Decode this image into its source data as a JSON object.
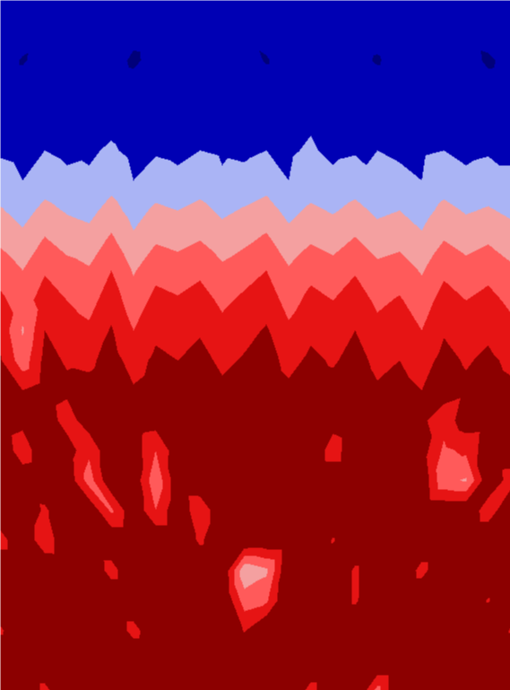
{
  "chart_data": {
    "type": "heatmap",
    "tick_labels": false,
    "color_thresholds": [
      1,
      2,
      3,
      4,
      5,
      6
    ],
    "colors": [
      "#00007a",
      "#0000b4",
      "#aab4f5",
      "#f4a0a0",
      "#ff5a5a",
      "#e61414",
      "#8c0000"
    ],
    "cells": [
      [
        1.5,
        1.4,
        1.6,
        1.3,
        1.5,
        1.2,
        1.6,
        1.4,
        1.5,
        1.3,
        1.6,
        1.5,
        1.4,
        1.2,
        1.5,
        1.6,
        1.3,
        1.5,
        1.4,
        1.6,
        1.3,
        1.5,
        1.4,
        1.5
      ],
      [
        1.4,
        1.6,
        1.3,
        1.5,
        1.2,
        1.6,
        1.4,
        1.5,
        1.3,
        1.6,
        1.4,
        1.2,
        1.5,
        1.4,
        1.6,
        1.3,
        1.5,
        1.4,
        1.6,
        1.2,
        1.5,
        1.4,
        1.6,
        1.3
      ],
      [
        1.5,
        0.9,
        1.4,
        1.6,
        1.3,
        1.5,
        0.8,
        1.4,
        1.6,
        1.5,
        1.3,
        1.5,
        0.9,
        1.6,
        1.4,
        1.5,
        1.3,
        0.9,
        1.5,
        1.4,
        1.6,
        1.5,
        0.8,
        1.4
      ],
      [
        1.6,
        1.5,
        1.7,
        1.4,
        1.6,
        1.7,
        1.5,
        1.6,
        1.4,
        1.7,
        1.6,
        1.5,
        1.7,
        1.6,
        1.4,
        1.6,
        1.7,
        1.5,
        1.6,
        1.4,
        1.7,
        1.6,
        1.5,
        1.6
      ],
      [
        1.7,
        1.8,
        1.6,
        1.9,
        1.7,
        1.8,
        1.6,
        1.8,
        1.9,
        1.7,
        1.8,
        1.6,
        1.8,
        1.7,
        1.9,
        1.8,
        1.6,
        1.8,
        1.7,
        1.9,
        1.8,
        1.7,
        1.8,
        1.6
      ],
      [
        1.9,
        1.8,
        2.0,
        1.8,
        1.9,
        2.1,
        1.8,
        1.9,
        1.8,
        2.0,
        1.9,
        1.8,
        2.0,
        1.9,
        2.1,
        1.8,
        1.9,
        2.0,
        1.8,
        1.9,
        2.0,
        1.8,
        1.9,
        1.9
      ],
      [
        2.3,
        2.0,
        2.5,
        2.2,
        2.1,
        2.6,
        2.0,
        2.4,
        2.2,
        2.5,
        2.1,
        2.3,
        2.6,
        2.0,
        2.4,
        2.2,
        2.5,
        2.1,
        2.3,
        2.0,
        2.5,
        2.2,
        2.4,
        2.1
      ],
      [
        3.1,
        2.6,
        3.3,
        2.9,
        2.7,
        3.4,
        2.6,
        3.2,
        3.0,
        3.3,
        2.8,
        3.1,
        3.4,
        2.7,
        3.2,
        2.9,
        3.3,
        2.8,
        3.0,
        2.6,
        3.3,
        2.9,
        3.1,
        2.8
      ],
      [
        3.8,
        3.3,
        4.1,
        3.6,
        3.4,
        4.2,
        3.2,
        3.9,
        3.7,
        4.0,
        3.5,
        3.8,
        4.2,
        3.4,
        3.9,
        3.6,
        4.1,
        3.5,
        3.7,
        3.2,
        4.0,
        3.6,
        3.9,
        3.5
      ],
      [
        4.6,
        4.0,
        4.9,
        4.4,
        4.1,
        5.0,
        3.9,
        4.7,
        4.5,
        4.8,
        4.2,
        4.6,
        5.0,
        4.1,
        4.7,
        4.4,
        4.9,
        4.3,
        4.5,
        3.9,
        4.8,
        4.4,
        4.7,
        4.2
      ],
      [
        5.2,
        4.5,
        5.5,
        5.0,
        4.6,
        5.6,
        4.4,
        5.3,
        5.1,
        5.4,
        4.8,
        5.2,
        5.6,
        4.6,
        5.3,
        5.0,
        5.5,
        4.8,
        5.1,
        4.5,
        5.4,
        5.0,
        5.3,
        4.8
      ],
      [
        5.7,
        3.9,
        6.0,
        5.5,
        5.2,
        6.1,
        5.0,
        5.8,
        5.6,
        5.9,
        5.3,
        5.7,
        6.1,
        5.2,
        5.8,
        5.5,
        6.0,
        5.3,
        5.6,
        5.0,
        5.9,
        5.5,
        5.8,
        5.3
      ],
      [
        6.1,
        4.4,
        6.3,
        5.9,
        5.8,
        6.4,
        5.6,
        6.2,
        6.0,
        6.3,
        5.8,
        6.1,
        6.4,
        5.7,
        6.2,
        5.9,
        6.3,
        5.8,
        6.0,
        5.6,
        6.3,
        5.9,
        6.2,
        5.8
      ],
      [
        6.4,
        6.0,
        6.5,
        6.2,
        6.3,
        6.6,
        6.1,
        6.4,
        6.3,
        6.5,
        6.2,
        6.4,
        6.6,
        6.2,
        6.4,
        6.3,
        6.5,
        6.1,
        6.3,
        6.0,
        6.5,
        6.2,
        6.4,
        6.2
      ],
      [
        6.6,
        6.3,
        6.7,
        5.5,
        6.6,
        6.2,
        6.7,
        6.5,
        6.6,
        6.7,
        6.4,
        6.6,
        6.8,
        6.5,
        6.6,
        6.4,
        6.7,
        6.3,
        6.5,
        6.2,
        5.4,
        6.6,
        6.5,
        6.4
      ],
      [
        6.8,
        5.4,
        6.8,
        6.6,
        5.2,
        6.9,
        6.6,
        5.0,
        6.7,
        6.8,
        6.6,
        6.8,
        6.9,
        6.7,
        6.8,
        5.5,
        6.8,
        6.6,
        6.7,
        6.5,
        4.8,
        5.2,
        6.7,
        6.6
      ],
      [
        6.9,
        6.7,
        6.9,
        6.8,
        4.5,
        6.9,
        6.8,
        4.2,
        6.8,
        6.9,
        6.8,
        6.9,
        7.0,
        6.8,
        6.9,
        6.8,
        6.9,
        6.7,
        6.8,
        6.9,
        4.2,
        3.9,
        6.8,
        5.6
      ],
      [
        7.0,
        6.9,
        5.8,
        7.0,
        6.9,
        4.8,
        6.9,
        5.0,
        6.9,
        5.2,
        6.9,
        7.0,
        7.0,
        6.9,
        7.0,
        6.9,
        7.0,
        6.8,
        6.9,
        7.0,
        6.9,
        6.9,
        5.4,
        6.9
      ],
      [
        5.5,
        7.0,
        5.2,
        7.0,
        7.0,
        7.0,
        7.0,
        7.0,
        7.0,
        5.8,
        7.0,
        7.0,
        6.9,
        7.0,
        7.0,
        5.9,
        7.0,
        7.0,
        6.9,
        7.0,
        7.0,
        7.0,
        7.0,
        7.0
      ],
      [
        7.1,
        7.1,
        7.1,
        7.0,
        7.1,
        5.5,
        7.1,
        7.1,
        7.1,
        7.0,
        7.1,
        3.2,
        3.8,
        7.1,
        7.1,
        7.1,
        5.8,
        7.1,
        7.1,
        5.6,
        7.1,
        7.0,
        7.1,
        7.1
      ],
      [
        7.2,
        7.2,
        7.2,
        7.2,
        7.1,
        7.2,
        7.2,
        7.2,
        7.2,
        7.2,
        7.2,
        4.5,
        4.8,
        7.2,
        7.2,
        7.2,
        5.8,
        7.2,
        7.2,
        7.2,
        7.2,
        7.2,
        5.9,
        7.2
      ],
      [
        5.8,
        7.2,
        7.3,
        7.2,
        7.3,
        7.2,
        5.5,
        7.2,
        7.3,
        7.2,
        7.3,
        5.9,
        7.2,
        7.3,
        7.2,
        7.3,
        7.2,
        7.3,
        7.2,
        7.3,
        7.2,
        7.3,
        7.2,
        5.9
      ],
      [
        7.3,
        7.3,
        7.3,
        7.3,
        7.3,
        7.3,
        7.3,
        7.3,
        7.3,
        7.3,
        7.3,
        7.3,
        7.3,
        6.0,
        7.3,
        7.3,
        7.3,
        7.3,
        7.3,
        7.3,
        7.3,
        7.3,
        7.3,
        7.3
      ],
      [
        7.4,
        7.4,
        5.6,
        7.4,
        7.4,
        7.4,
        7.4,
        7.4,
        7.4,
        7.4,
        7.4,
        7.4,
        7.4,
        7.4,
        5.5,
        7.4,
        7.4,
        4.6,
        7.4,
        7.4,
        7.4,
        7.4,
        7.4,
        7.4
      ]
    ]
  }
}
